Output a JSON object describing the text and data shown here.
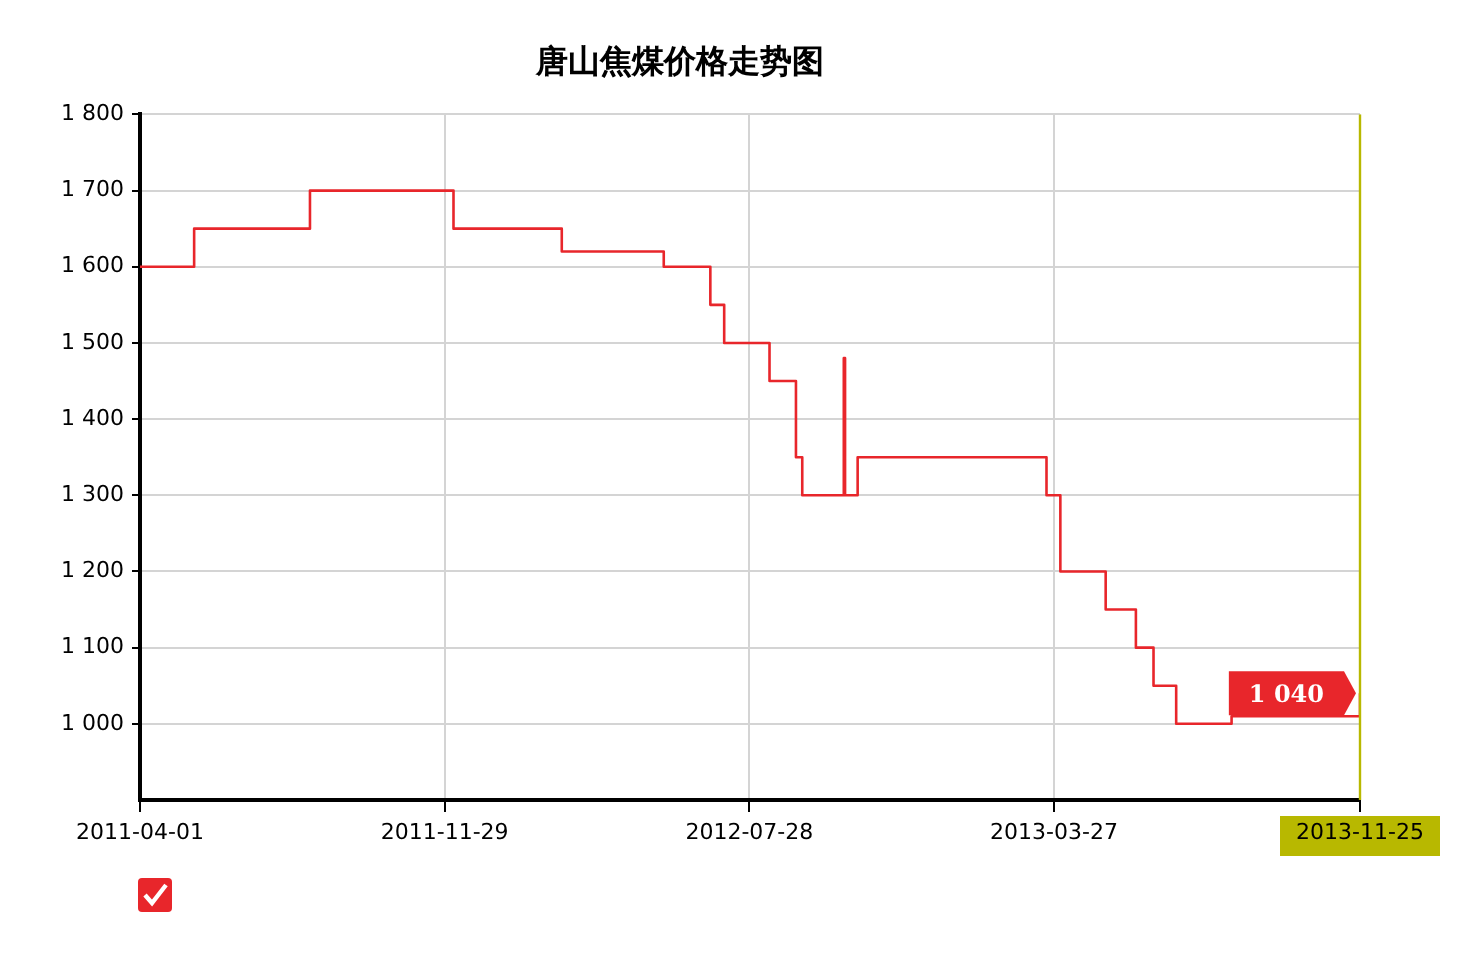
{
  "chart_data": {
    "type": "step",
    "title": "唐山焦煤价格走势图",
    "x": [
      "2011-04-01",
      "2011-05-14",
      "2011-08-14",
      "2011-12-06",
      "2012-03-01",
      "2012-05-21",
      "2012-06-27",
      "2012-07-08",
      "2012-08-13",
      "2012-09-03",
      "2012-09-08",
      "2012-10-11",
      "2012-10-12",
      "2012-10-22",
      "2013-03-21",
      "2013-04-01",
      "2013-05-07",
      "2013-05-31",
      "2013-06-14",
      "2013-07-02",
      "2013-08-15",
      "2013-09-02",
      "2013-11-25"
    ],
    "series": [
      {
        "color": "#e8262b",
        "values": [
          1600,
          1650,
          1700,
          1650,
          1620,
          1600,
          1550,
          1500,
          1450,
          1350,
          1300,
          1480,
          1300,
          1350,
          1300,
          1200,
          1150,
          1100,
          1050,
          1000,
          1010,
          null,
          1040
        ],
        "value_labels": [
          null,
          null,
          null,
          null,
          null,
          null,
          null,
          null,
          null,
          null,
          null,
          null,
          null,
          null,
          null,
          null,
          null,
          null,
          null,
          null,
          null,
          null,
          "1 040"
        ]
      }
    ],
    "xlim": [
      "2011-04-01",
      "2013-11-25"
    ],
    "xticks": [
      "2011-04-01",
      "2011-11-29",
      "2012-07-28",
      "2013-03-27",
      "2013-11-25"
    ],
    "ylim": [
      900,
      1800
    ],
    "yticks": [
      {
        "value": 1000,
        "label": "1 000"
      },
      {
        "value": 1100,
        "label": "1 100"
      },
      {
        "value": 1200,
        "label": "1 200"
      },
      {
        "value": 1300,
        "label": "1 300"
      },
      {
        "value": 1400,
        "label": "1 400"
      },
      {
        "value": 1500,
        "label": "1 500"
      },
      {
        "value": 1600,
        "label": "1 600"
      },
      {
        "value": 1700,
        "label": "1 700"
      },
      {
        "value": 1800,
        "label": "1 800"
      }
    ],
    "ref_lines": [
      {
        "axis": "x",
        "value": "2013-11-25",
        "label": null,
        "color": "#b8b800"
      }
    ],
    "grid": true,
    "marker": "none",
    "line_style": "solid"
  }
}
